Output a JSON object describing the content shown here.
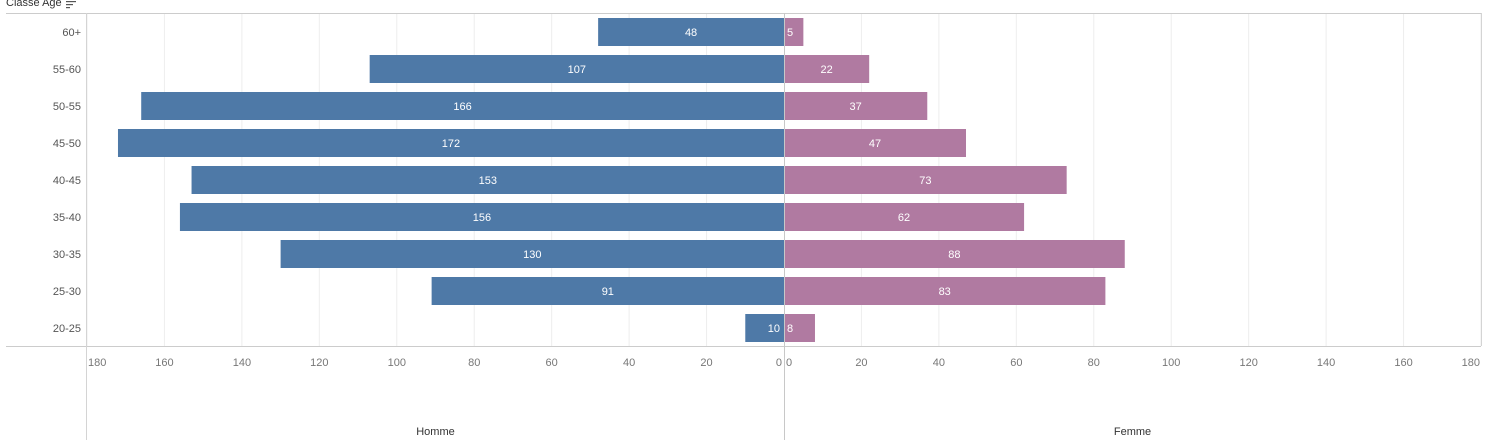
{
  "header": {
    "title": "Classe Age"
  },
  "chart_data": {
    "type": "bar",
    "orientation": "horizontal",
    "layout": "population-pyramid",
    "categories": [
      "60+",
      "55-60",
      "50-55",
      "45-50",
      "40-45",
      "35-40",
      "30-35",
      "25-30",
      "20-25"
    ],
    "row_header": "Classe Age",
    "series": [
      {
        "name": "Homme",
        "values": [
          48,
          107,
          166,
          172,
          153,
          156,
          130,
          91,
          10
        ],
        "color": "#4e79a7"
      },
      {
        "name": "Femme",
        "values": [
          5,
          22,
          37,
          47,
          73,
          62,
          88,
          83,
          8
        ],
        "color": "#b07aa1"
      }
    ],
    "xlim": [
      0,
      180
    ],
    "left_ticks": [
      "180",
      "160",
      "140",
      "120",
      "100",
      "80",
      "60",
      "40",
      "20",
      "0"
    ],
    "right_ticks": [
      "0",
      "20",
      "40",
      "60",
      "80",
      "100",
      "120",
      "140",
      "160",
      "180"
    ],
    "grid": true,
    "data_labels": true
  }
}
